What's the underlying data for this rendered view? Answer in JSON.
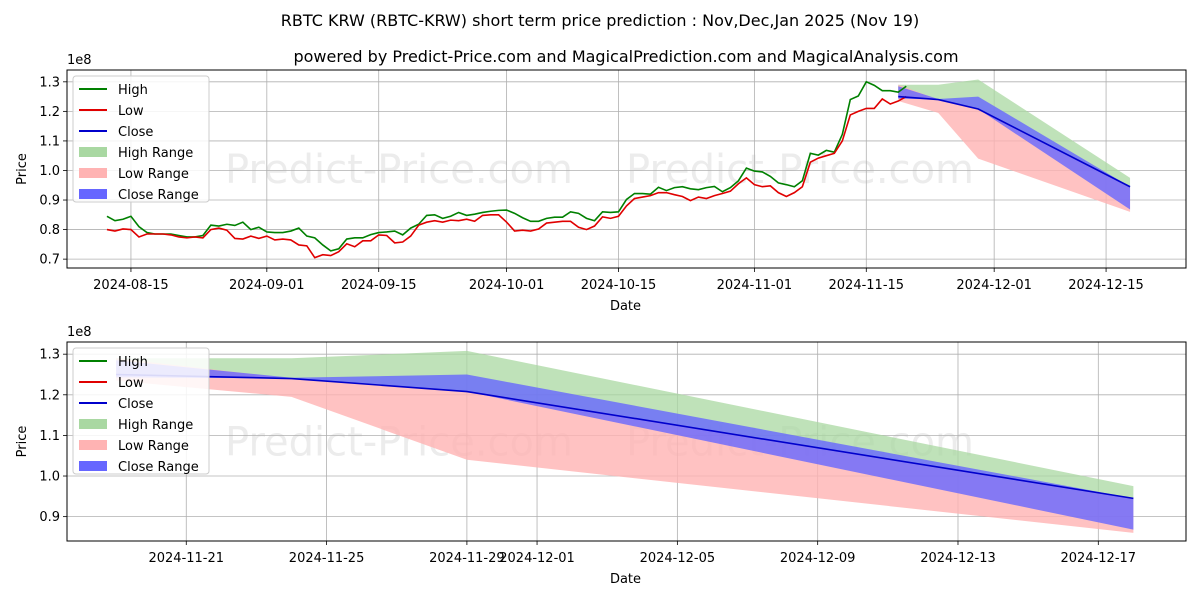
{
  "title": "RBTC KRW (RBTC-KRW) short term price prediction : Nov,Dec,Jan 2025 (Nov 19)",
  "subtitle": "powered by Predict-Price.com and MagicalPrediction.com and MagicalAnalysis.com",
  "watermark": "Predict-Price.com",
  "colors": {
    "high": "#008000",
    "low": "#e00000",
    "close": "#0000cc",
    "high_range": "#a9d8a2",
    "low_range": "#ffb3b3",
    "close_range": "#6666ff"
  },
  "chart_data": [
    {
      "type": "line",
      "name": "full-history",
      "xlabel": "Date",
      "ylabel": "Price",
      "scale_label": "1e8",
      "xlim": [
        "2024-08-07",
        "2024-12-25"
      ],
      "ylim": [
        0.67,
        1.34
      ],
      "yticks": [
        0.7,
        0.8,
        0.9,
        1.0,
        1.1,
        1.2,
        1.3
      ],
      "yticklabels": [
        "0.7",
        "0.8",
        "0.9",
        "1.0",
        "1.1",
        "1.2",
        "1.3"
      ],
      "xticks": [
        "2024-08-15",
        "2024-09-01",
        "2024-09-15",
        "2024-10-01",
        "2024-10-15",
        "2024-11-01",
        "2024-11-15",
        "2024-12-01",
        "2024-12-15"
      ],
      "legend": [
        "High",
        "Low",
        "Close",
        "High Range",
        "Low Range",
        "Close Range"
      ],
      "legend_position": "upper-left",
      "grid": true,
      "history": {
        "start": "2024-08-12",
        "high": [
          0.845,
          0.83,
          0.835,
          0.845,
          0.81,
          0.79,
          0.785,
          0.785,
          0.785,
          0.78,
          0.775,
          0.775,
          0.78,
          0.815,
          0.812,
          0.818,
          0.814,
          0.825,
          0.8,
          0.808,
          0.792,
          0.79,
          0.79,
          0.795,
          0.805,
          0.778,
          0.772,
          0.748,
          0.728,
          0.735,
          0.768,
          0.772,
          0.772,
          0.783,
          0.79,
          0.792,
          0.795,
          0.782,
          0.805,
          0.818,
          0.848,
          0.85,
          0.838,
          0.845,
          0.858,
          0.848,
          0.852,
          0.858,
          0.862,
          0.865,
          0.866,
          0.855,
          0.84,
          0.828,
          0.828,
          0.838,
          0.842,
          0.842,
          0.86,
          0.855,
          0.838,
          0.83,
          0.86,
          0.858,
          0.86,
          0.902,
          0.922,
          0.922,
          0.92,
          0.943,
          0.932,
          0.942,
          0.945,
          0.938,
          0.935,
          0.942,
          0.946,
          0.928,
          0.942,
          0.965,
          1.008,
          0.998,
          0.995,
          0.98,
          0.958,
          0.952,
          0.945,
          0.965,
          1.058,
          1.052,
          1.068,
          1.062,
          1.122,
          1.24,
          1.252,
          1.3,
          1.288,
          1.27,
          1.27,
          1.265,
          1.285
        ],
        "low": [
          0.8,
          0.795,
          0.802,
          0.8,
          0.775,
          0.785,
          0.785,
          0.785,
          0.782,
          0.775,
          0.772,
          0.775,
          0.772,
          0.8,
          0.805,
          0.798,
          0.77,
          0.768,
          0.778,
          0.77,
          0.778,
          0.765,
          0.768,
          0.765,
          0.748,
          0.745,
          0.705,
          0.715,
          0.712,
          0.725,
          0.752,
          0.742,
          0.762,
          0.762,
          0.782,
          0.78,
          0.755,
          0.758,
          0.778,
          0.815,
          0.825,
          0.83,
          0.825,
          0.832,
          0.83,
          0.835,
          0.828,
          0.848,
          0.85,
          0.85,
          0.825,
          0.795,
          0.798,
          0.795,
          0.802,
          0.822,
          0.825,
          0.828,
          0.828,
          0.808,
          0.8,
          0.812,
          0.843,
          0.838,
          0.845,
          0.88,
          0.905,
          0.91,
          0.915,
          0.925,
          0.925,
          0.918,
          0.912,
          0.898,
          0.91,
          0.905,
          0.915,
          0.922,
          0.93,
          0.955,
          0.975,
          0.952,
          0.945,
          0.948,
          0.925,
          0.912,
          0.925,
          0.945,
          1.028,
          1.042,
          1.05,
          1.058,
          1.1,
          1.188,
          1.2,
          1.21,
          1.21,
          1.242,
          1.225,
          1.235,
          1.25
        ]
      },
      "forecast": {
        "dates": [
          "2024-11-19",
          "2024-11-24",
          "2024-11-29",
          "2024-12-18"
        ],
        "high_range": [
          [
            1.25,
            1.29
          ],
          [
            1.242,
            1.29
          ],
          [
            1.21,
            1.308
          ],
          [
            0.945,
            0.975
          ]
        ],
        "low_range": [
          [
            1.235,
            1.29
          ],
          [
            1.195,
            1.24
          ],
          [
            1.04,
            1.21
          ],
          [
            0.86,
            0.945
          ]
        ],
        "close_range": [
          [
            1.243,
            1.285
          ],
          [
            1.24,
            1.242
          ],
          [
            1.208,
            1.25
          ],
          [
            0.868,
            0.945
          ]
        ],
        "close": [
          1.25,
          1.24,
          1.208,
          0.945
        ]
      }
    },
    {
      "type": "line",
      "name": "forecast-zoom",
      "xlabel": "Date",
      "ylabel": "Price",
      "scale_label": "1e8",
      "xlim": [
        "2024-11-17.6",
        "2024-12-19.5"
      ],
      "ylim": [
        0.84,
        1.33
      ],
      "yticks": [
        0.9,
        1.0,
        1.1,
        1.2,
        1.3
      ],
      "yticklabels": [
        "0.9",
        "1.0",
        "1.1",
        "1.2",
        "1.3"
      ],
      "xticks": [
        "2024-11-21",
        "2024-11-25",
        "2024-11-29",
        "2024-12-01",
        "2024-12-05",
        "2024-12-09",
        "2024-12-13",
        "2024-12-17"
      ],
      "legend": [
        "High",
        "Low",
        "Close",
        "High Range",
        "Low Range",
        "Close Range"
      ],
      "legend_position": "upper-left",
      "grid": true
    }
  ]
}
